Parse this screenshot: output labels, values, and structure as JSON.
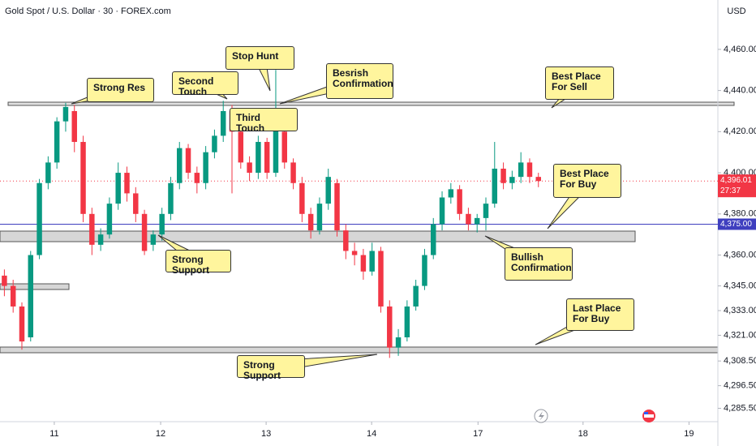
{
  "chart_data": {
    "type": "candlestick",
    "title": "Gold Spot / U.S. Dollar · 30 · FOREX.com",
    "currency": "USD",
    "up_color": "#089981",
    "down_color": "#f23645",
    "ylim": [
      4279,
      4484
    ],
    "yticks": [
      {
        "value": 4460,
        "label": "4,460.00"
      },
      {
        "value": 4440,
        "label": "4,440.00"
      },
      {
        "value": 4420,
        "label": "4,420.00"
      },
      {
        "value": 4400,
        "label": "4,400.00"
      },
      {
        "value": 4380,
        "label": "4,380.00"
      },
      {
        "value": 4360,
        "label": "4,360.00"
      },
      {
        "value": 4345,
        "label": "4,345.00"
      },
      {
        "value": 4333,
        "label": "4,333.00"
      },
      {
        "value": 4321,
        "label": "4,321.00"
      },
      {
        "value": 4308.5,
        "label": "4,308.50"
      },
      {
        "value": 4296.5,
        "label": "4,296.50"
      },
      {
        "value": 4285.5,
        "label": "4,285.50"
      }
    ],
    "xlim": [
      -0.5,
      81.5
    ],
    "xticks": [
      {
        "value": 5.7,
        "label": "11"
      },
      {
        "value": 17.85,
        "label": "12"
      },
      {
        "value": 29.9,
        "label": "13"
      },
      {
        "value": 41.95,
        "label": "14"
      },
      {
        "value": 54.1,
        "label": "17"
      },
      {
        "value": 66.1,
        "label": "18"
      },
      {
        "value": 78.2,
        "label": "19"
      }
    ],
    "price_line": {
      "value": 4375,
      "label": "4,375.00",
      "color": "#3f3fbf"
    },
    "last_price": {
      "value": 4396.01,
      "label": "4,396.01",
      "countdown": "27:37",
      "color": "#f23645"
    },
    "annotations": [
      "Strong Res",
      "Second Touch",
      "Stop Hunt",
      "Besrish Confirmation",
      "Third Touch",
      "Best Place For Sell",
      "Best Place For Buy",
      "Strong Support",
      "Bullish Confirmation",
      "Last Place For Buy",
      "Strong Support"
    ],
    "candles": [
      {
        "o": 4350,
        "h": 4353,
        "l": 4340,
        "c": 4345
      },
      {
        "o": 4345,
        "h": 4348,
        "l": 4332,
        "c": 4335
      },
      {
        "o": 4335,
        "h": 4337,
        "l": 4314,
        "c": 4318
      },
      {
        "o": 4320,
        "h": 4362,
        "l": 4318,
        "c": 4360
      },
      {
        "o": 4360,
        "h": 4397,
        "l": 4358,
        "c": 4395
      },
      {
        "o": 4395,
        "h": 4408,
        "l": 4392,
        "c": 4405
      },
      {
        "o": 4405,
        "h": 4427,
        "l": 4402,
        "c": 4425
      },
      {
        "o": 4425,
        "h": 4434,
        "l": 4420,
        "c": 4432
      },
      {
        "o": 4430,
        "h": 4433,
        "l": 4410,
        "c": 4415
      },
      {
        "o": 4415,
        "h": 4418,
        "l": 4376,
        "c": 4380
      },
      {
        "o": 4380,
        "h": 4383,
        "l": 4360,
        "c": 4365
      },
      {
        "o": 4365,
        "h": 4373,
        "l": 4362,
        "c": 4370
      },
      {
        "o": 4370,
        "h": 4388,
        "l": 4368,
        "c": 4385
      },
      {
        "o": 4385,
        "h": 4405,
        "l": 4382,
        "c": 4400
      },
      {
        "o": 4400,
        "h": 4403,
        "l": 4386,
        "c": 4390
      },
      {
        "o": 4390,
        "h": 4393,
        "l": 4376,
        "c": 4380
      },
      {
        "o": 4380,
        "h": 4382,
        "l": 4360,
        "c": 4362
      },
      {
        "o": 4365,
        "h": 4372,
        "l": 4362,
        "c": 4370
      },
      {
        "o": 4370,
        "h": 4383,
        "l": 4367,
        "c": 4380
      },
      {
        "o": 4380,
        "h": 4398,
        "l": 4377,
        "c": 4395
      },
      {
        "o": 4395,
        "h": 4415,
        "l": 4392,
        "c": 4412
      },
      {
        "o": 4412,
        "h": 4414,
        "l": 4397,
        "c": 4400
      },
      {
        "o": 4400,
        "h": 4403,
        "l": 4390,
        "c": 4395
      },
      {
        "o": 4395,
        "h": 4413,
        "l": 4392,
        "c": 4410
      },
      {
        "o": 4410,
        "h": 4421,
        "l": 4407,
        "c": 4418
      },
      {
        "o": 4418,
        "h": 4435,
        "l": 4415,
        "c": 4430
      },
      {
        "o": 4430,
        "h": 4433,
        "l": 4390,
        "c": 4420
      },
      {
        "o": 4420,
        "h": 4423,
        "l": 4402,
        "c": 4405
      },
      {
        "o": 4405,
        "h": 4408,
        "l": 4396,
        "c": 4400
      },
      {
        "o": 4400,
        "h": 4418,
        "l": 4397,
        "c": 4415
      },
      {
        "o": 4415,
        "h": 4417,
        "l": 4397,
        "c": 4400
      },
      {
        "o": 4400,
        "h": 4450,
        "l": 4398,
        "c": 4425
      },
      {
        "o": 4420,
        "h": 4423,
        "l": 4402,
        "c": 4405
      },
      {
        "o": 4405,
        "h": 4407,
        "l": 4392,
        "c": 4395
      },
      {
        "o": 4395,
        "h": 4398,
        "l": 4376,
        "c": 4380
      },
      {
        "o": 4380,
        "h": 4383,
        "l": 4368,
        "c": 4372
      },
      {
        "o": 4372,
        "h": 4388,
        "l": 4370,
        "c": 4385
      },
      {
        "o": 4385,
        "h": 4402,
        "l": 4382,
        "c": 4398
      },
      {
        "o": 4395,
        "h": 4397,
        "l": 4369,
        "c": 4372
      },
      {
        "o": 4372,
        "h": 4375,
        "l": 4358,
        "c": 4362
      },
      {
        "o": 4362,
        "h": 4366,
        "l": 4355,
        "c": 4360
      },
      {
        "o": 4360,
        "h": 4363,
        "l": 4348,
        "c": 4352
      },
      {
        "o": 4352,
        "h": 4366,
        "l": 4350,
        "c": 4362
      },
      {
        "o": 4362,
        "h": 4364,
        "l": 4332,
        "c": 4335
      },
      {
        "o": 4335,
        "h": 4338,
        "l": 4310,
        "c": 4315
      },
      {
        "o": 4315,
        "h": 4324,
        "l": 4311,
        "c": 4320
      },
      {
        "o": 4320,
        "h": 4338,
        "l": 4318,
        "c": 4335
      },
      {
        "o": 4335,
        "h": 4348,
        "l": 4333,
        "c": 4345
      },
      {
        "o": 4345,
        "h": 4363,
        "l": 4343,
        "c": 4360
      },
      {
        "o": 4360,
        "h": 4378,
        "l": 4358,
        "c": 4375
      },
      {
        "o": 4375,
        "h": 4391,
        "l": 4372,
        "c": 4388
      },
      {
        "o": 4388,
        "h": 4395,
        "l": 4385,
        "c": 4392
      },
      {
        "o": 4392,
        "h": 4394,
        "l": 4377,
        "c": 4380
      },
      {
        "o": 4380,
        "h": 4383,
        "l": 4372,
        "c": 4375
      },
      {
        "o": 4375,
        "h": 4380,
        "l": 4371,
        "c": 4378
      },
      {
        "o": 4378,
        "h": 4388,
        "l": 4372,
        "c": 4385
      },
      {
        "o": 4385,
        "h": 4415,
        "l": 4383,
        "c": 4402
      },
      {
        "o": 4402,
        "h": 4405,
        "l": 4392,
        "c": 4395
      },
      {
        "o": 4395,
        "h": 4401,
        "l": 4392,
        "c": 4398
      },
      {
        "o": 4398,
        "h": 4410,
        "l": 4395,
        "c": 4405
      },
      {
        "o": 4405,
        "h": 4407,
        "l": 4395,
        "c": 4398
      },
      {
        "o": 4398,
        "h": 4400,
        "l": 4393,
        "c": 4396
      }
    ]
  }
}
